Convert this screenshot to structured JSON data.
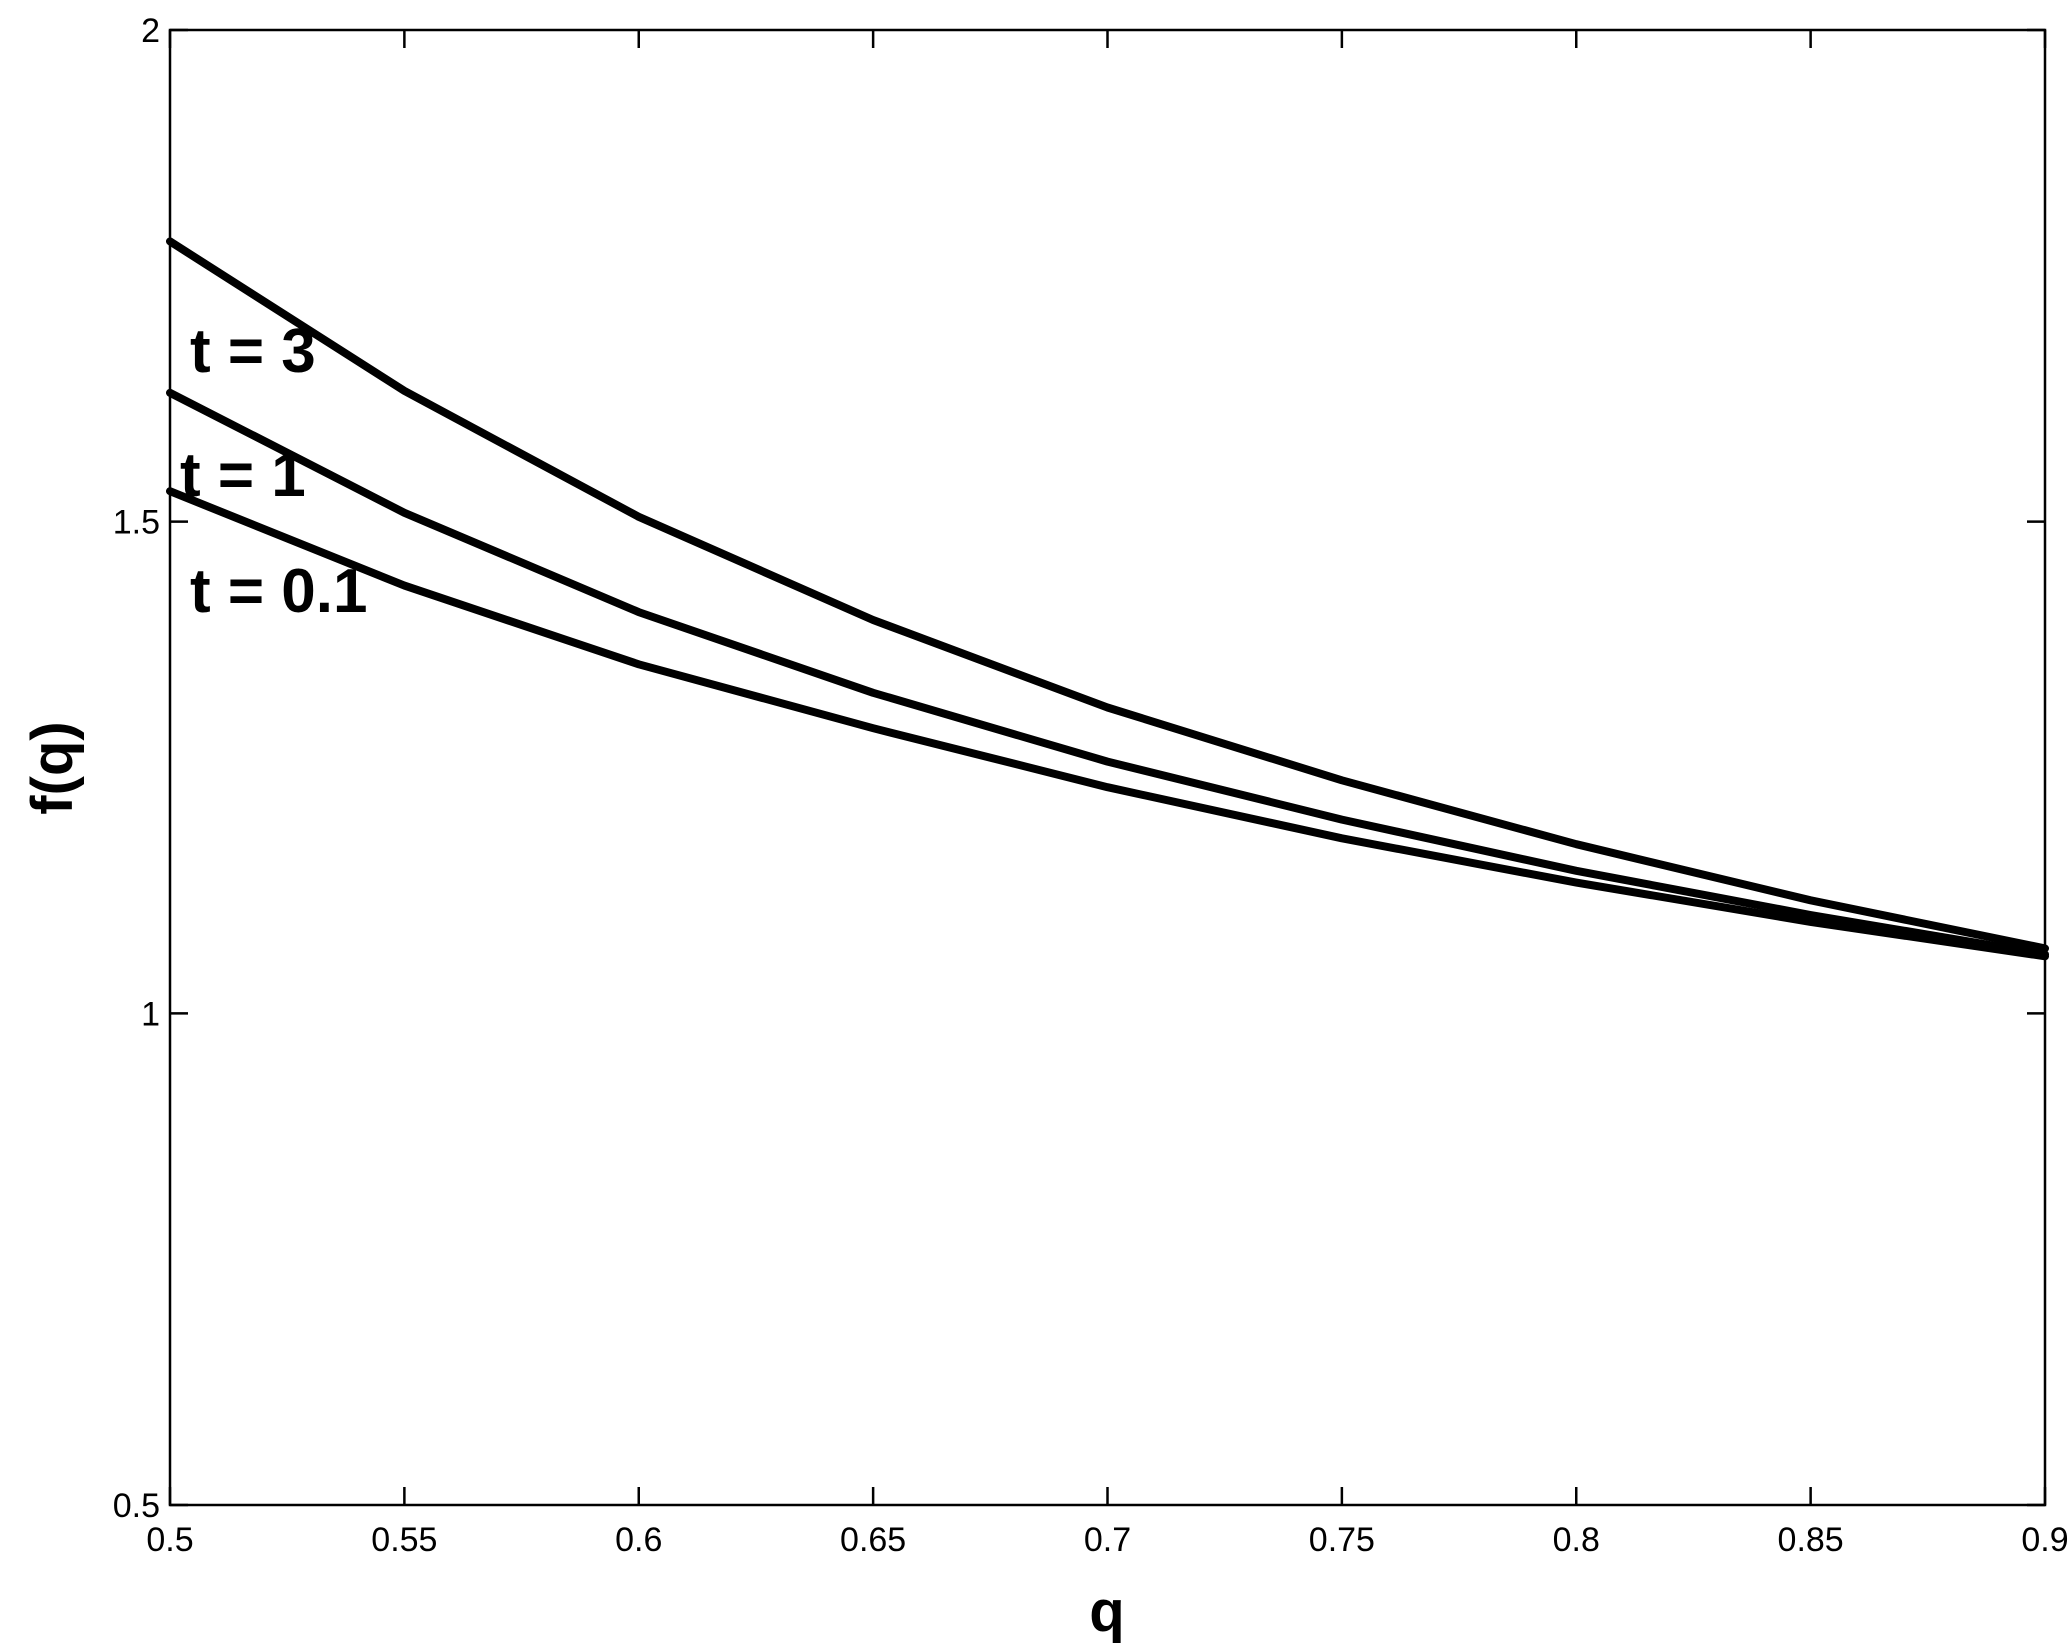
{
  "chart_data": {
    "type": "line",
    "title": "",
    "xlabel": "q",
    "ylabel": "f(q)",
    "xlim": [
      0.5,
      0.9
    ],
    "ylim": [
      0.5,
      2
    ],
    "xticks": [
      0.5,
      0.55,
      0.6,
      0.65,
      0.7,
      0.75,
      0.8,
      0.85,
      0.9
    ],
    "yticks": [
      0.5,
      1,
      1.5,
      2
    ],
    "xtick_labels": [
      "0.5",
      "0.55",
      "0.6",
      "0.65",
      "0.7",
      "0.75",
      "0.8",
      "0.85",
      "0.9"
    ],
    "ytick_labels": [
      "0.5",
      "1",
      "1.5",
      "2"
    ],
    "grid": false,
    "legend": "none",
    "x": [
      0.5,
      0.55,
      0.6,
      0.65,
      0.7,
      0.75,
      0.8,
      0.85,
      0.9
    ],
    "series": [
      {
        "name": "t = 3",
        "values": [
          1.785,
          1.633,
          1.505,
          1.4,
          1.311,
          1.237,
          1.172,
          1.115,
          1.066
        ]
      },
      {
        "name": "t = 1",
        "values": [
          1.631,
          1.509,
          1.408,
          1.326,
          1.256,
          1.197,
          1.145,
          1.1,
          1.06
        ]
      },
      {
        "name": "t = 0.1",
        "values": [
          1.531,
          1.435,
          1.355,
          1.29,
          1.23,
          1.178,
          1.133,
          1.093,
          1.058
        ]
      }
    ],
    "annotations": [
      {
        "text": "t = 3",
        "series": 0
      },
      {
        "text": "t = 1",
        "series": 1
      },
      {
        "text": "t = 0.1",
        "series": 2
      }
    ]
  }
}
